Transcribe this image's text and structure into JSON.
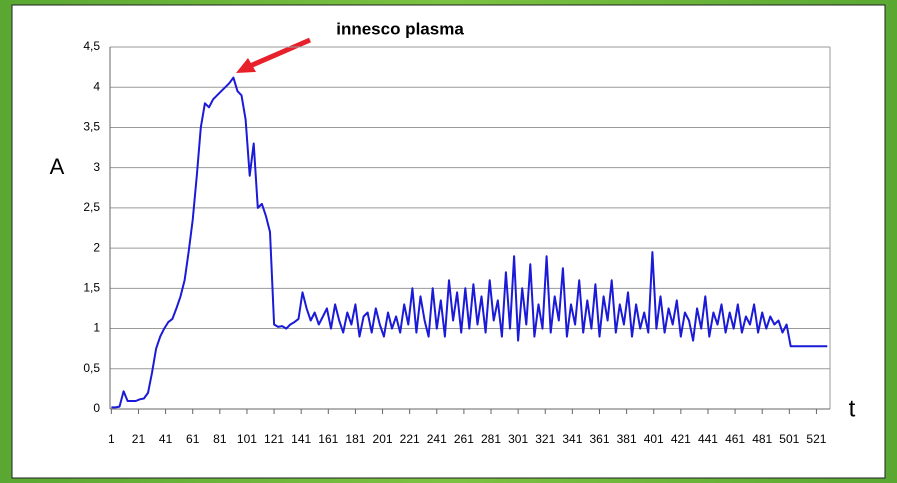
{
  "chart_data": {
    "type": "line",
    "annotation": "innesco plasma",
    "y_label": "A",
    "x_label": "t",
    "xlim": [
      0,
      531
    ],
    "xticks": [
      1,
      21,
      41,
      61,
      81,
      101,
      121,
      141,
      161,
      181,
      201,
      221,
      241,
      261,
      281,
      301,
      321,
      341,
      361,
      381,
      401,
      421,
      441,
      461,
      481,
      501,
      521
    ],
    "ylim": [
      0,
      4.5
    ],
    "yticks": [
      0,
      {
        "value": 0.5,
        "label": "0,5"
      },
      1,
      {
        "value": 1.5,
        "label": "1,5"
      },
      2,
      {
        "value": 2.5,
        "label": "2,5"
      },
      3,
      {
        "value": 3.5,
        "label": "3,5"
      },
      4,
      {
        "value": 4.5,
        "label": "4,5"
      }
    ],
    "grid": true,
    "series": [
      {
        "color": "#1a1ad8",
        "x": [
          1,
          4,
          7,
          10,
          13,
          16,
          19,
          22,
          25,
          28,
          31,
          34,
          37,
          40,
          43,
          46,
          49,
          52,
          55,
          58,
          61,
          64,
          67,
          70,
          73,
          76,
          79,
          82,
          85,
          88,
          91,
          94,
          97,
          100,
          103,
          106,
          109,
          112,
          115,
          118,
          121,
          124,
          127,
          130,
          133,
          136,
          139,
          142,
          145,
          148,
          151,
          154,
          157,
          160,
          163,
          166,
          169,
          172,
          175,
          178,
          181,
          184,
          187,
          190,
          193,
          196,
          199,
          202,
          205,
          208,
          211,
          214,
          217,
          220,
          223,
          226,
          229,
          232,
          235,
          238,
          241,
          244,
          247,
          250,
          253,
          256,
          259,
          262,
          265,
          268,
          271,
          274,
          277,
          280,
          283,
          286,
          289,
          292,
          295,
          298,
          301,
          304,
          307,
          310,
          313,
          316,
          319,
          322,
          325,
          328,
          331,
          334,
          337,
          340,
          343,
          346,
          349,
          352,
          355,
          358,
          361,
          364,
          367,
          370,
          373,
          376,
          379,
          382,
          385,
          388,
          391,
          394,
          397,
          400,
          403,
          406,
          409,
          412,
          415,
          418,
          421,
          424,
          427,
          430,
          433,
          436,
          439,
          442,
          445,
          448,
          451,
          454,
          457,
          460,
          463,
          466,
          469,
          472,
          475,
          478,
          481,
          484,
          487,
          490,
          493,
          496,
          499,
          502,
          529
        ],
        "values": [
          0.02,
          0.02,
          0.03,
          0.22,
          0.1,
          0.1,
          0.1,
          0.12,
          0.13,
          0.2,
          0.45,
          0.75,
          0.9,
          1.0,
          1.08,
          1.12,
          1.25,
          1.4,
          1.6,
          1.95,
          2.35,
          2.9,
          3.5,
          3.8,
          3.75,
          3.85,
          3.9,
          3.95,
          4.0,
          4.05,
          4.12,
          3.95,
          3.9,
          3.6,
          2.9,
          3.3,
          2.5,
          2.55,
          2.4,
          2.2,
          1.05,
          1.02,
          1.03,
          1.0,
          1.05,
          1.08,
          1.12,
          1.45,
          1.25,
          1.1,
          1.2,
          1.05,
          1.15,
          1.25,
          1.0,
          1.3,
          1.1,
          0.95,
          1.2,
          1.05,
          1.3,
          0.9,
          1.15,
          1.2,
          0.95,
          1.25,
          1.05,
          0.9,
          1.2,
          1.0,
          1.15,
          0.95,
          1.3,
          1.05,
          1.5,
          0.95,
          1.4,
          1.1,
          0.9,
          1.5,
          1.0,
          1.35,
          0.9,
          1.6,
          1.1,
          1.45,
          0.95,
          1.5,
          1.0,
          1.55,
          1.05,
          1.4,
          0.95,
          1.6,
          1.1,
          1.35,
          0.9,
          1.7,
          1.0,
          1.9,
          0.85,
          1.5,
          1.05,
          1.8,
          0.9,
          1.3,
          1.0,
          1.9,
          0.95,
          1.4,
          1.1,
          1.75,
          0.9,
          1.3,
          1.05,
          1.6,
          0.95,
          1.35,
          1.0,
          1.55,
          0.9,
          1.4,
          1.1,
          1.6,
          0.95,
          1.3,
          1.05,
          1.45,
          0.9,
          1.3,
          1.0,
          1.2,
          0.95,
          1.95,
          1.0,
          1.4,
          0.95,
          1.25,
          1.05,
          1.35,
          0.9,
          1.2,
          1.1,
          0.85,
          1.25,
          1.0,
          1.4,
          0.9,
          1.2,
          1.05,
          1.3,
          0.95,
          1.2,
          1.0,
          1.3,
          0.95,
          1.15,
          1.05,
          1.3,
          0.95,
          1.2,
          1.0,
          1.15,
          1.05,
          1.1,
          0.95,
          1.05,
          0.78,
          0.78
        ]
      }
    ]
  }
}
